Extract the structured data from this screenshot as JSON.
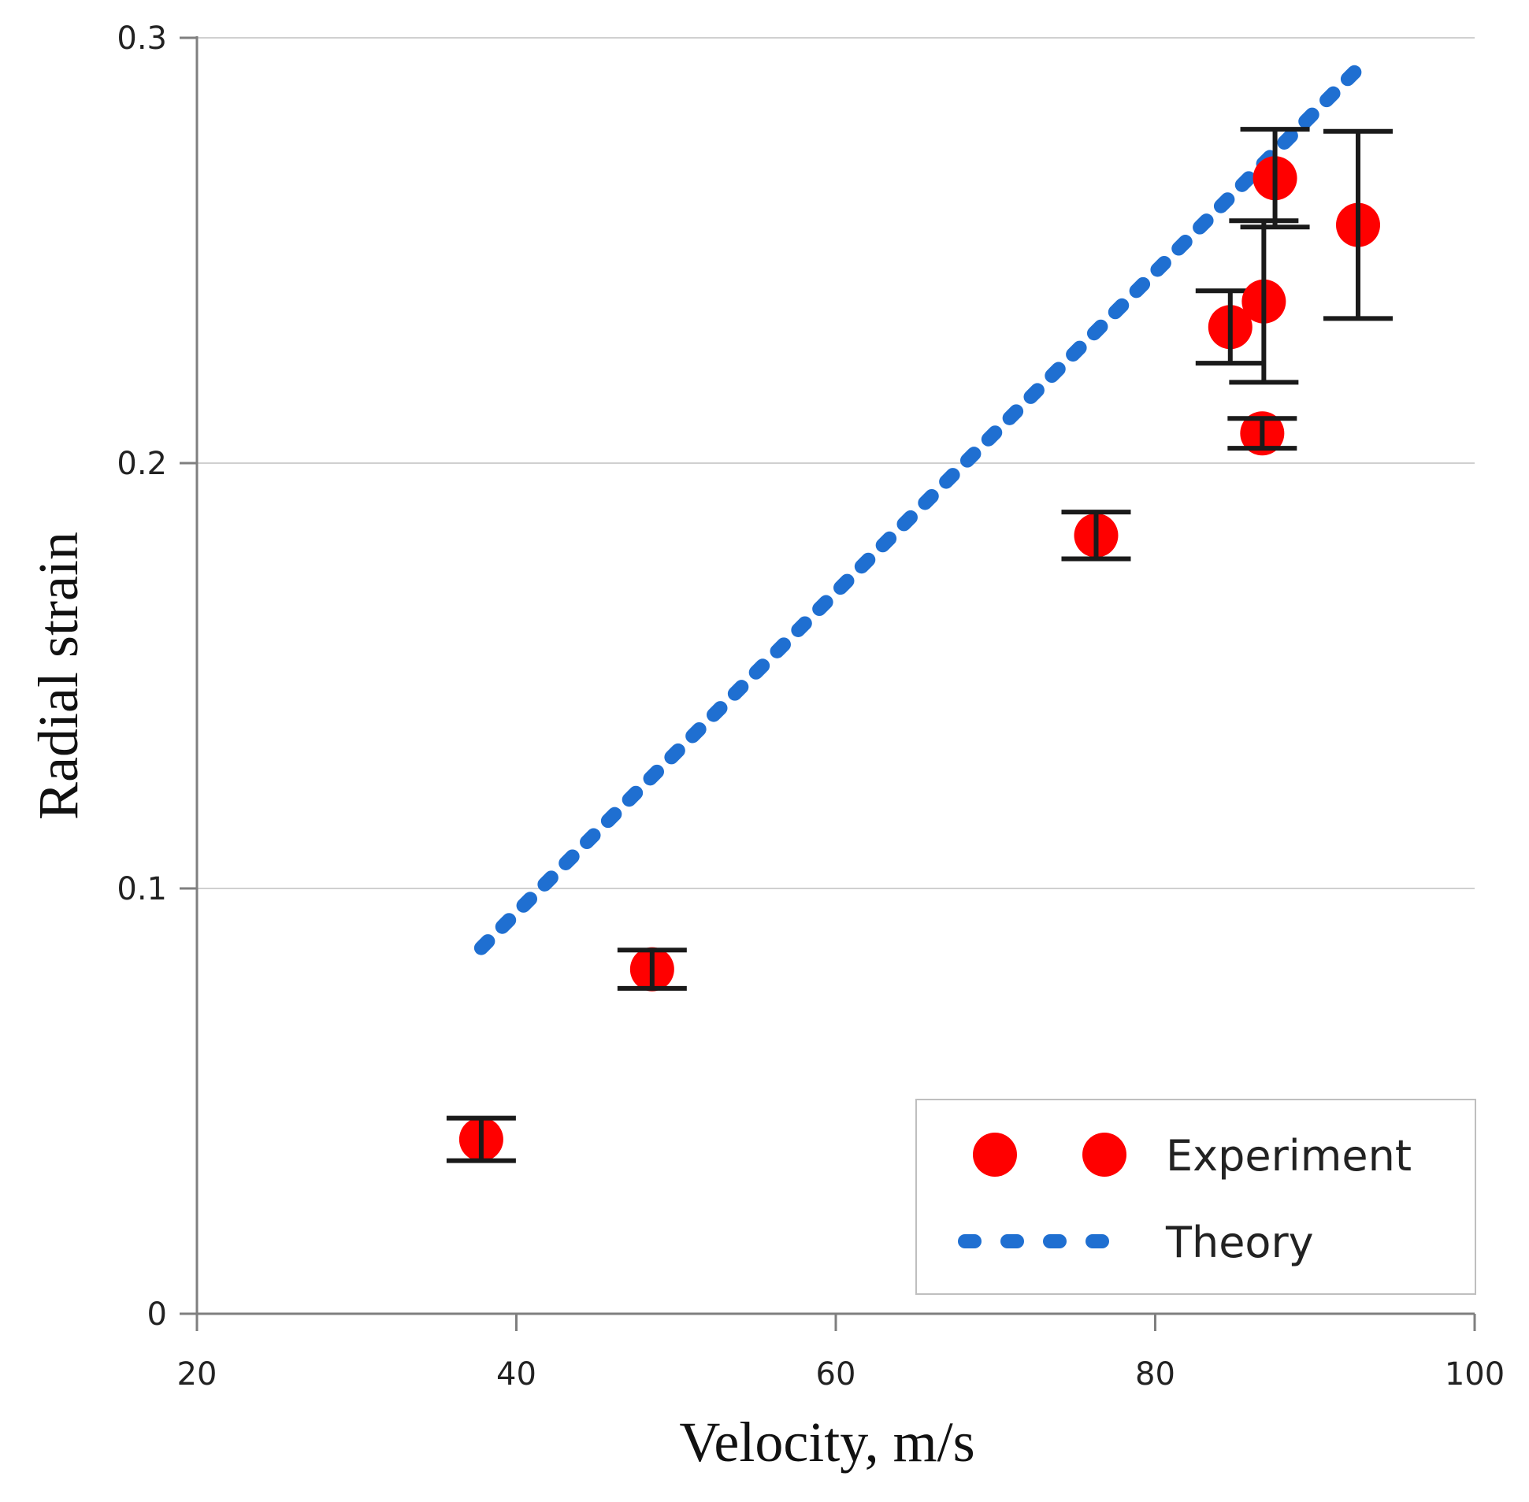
{
  "chart_data": {
    "type": "scatter",
    "title": "",
    "xlabel": "Velocity, m/s",
    "ylabel": "Radial strain",
    "xlim": [
      20,
      100
    ],
    "ylim": [
      0,
      0.3
    ],
    "x_ticks": [
      20,
      40,
      60,
      80,
      100
    ],
    "x_tick_labels": [
      "20",
      "40",
      "60",
      "80",
      "100"
    ],
    "y_ticks": [
      0,
      0.1,
      0.2,
      0.3
    ],
    "y_tick_labels": [
      "0",
      "0.1",
      "0.2",
      "0.3"
    ],
    "grid": "horizontal",
    "legend_position": "bottom-right",
    "series": [
      {
        "name": "Experiment",
        "kind": "points-with-error-bars",
        "color": "#ff0000",
        "points": [
          {
            "x": 37.8,
            "y": 0.041,
            "err": 0.005
          },
          {
            "x": 48.5,
            "y": 0.081,
            "err": 0.0045
          },
          {
            "x": 76.3,
            "y": 0.183,
            "err": 0.0055
          },
          {
            "x": 84.7,
            "y": 0.232,
            "err": 0.0085
          },
          {
            "x": 86.7,
            "y": 0.207,
            "err": 0.0035
          },
          {
            "x": 86.8,
            "y": 0.238,
            "err": 0.019
          },
          {
            "x": 87.5,
            "y": 0.267,
            "err": 0.0115
          },
          {
            "x": 92.7,
            "y": 0.256,
            "err": 0.022
          }
        ]
      },
      {
        "name": "Theory",
        "kind": "dotted-line",
        "color": "#1f6fd1",
        "x": [
          37.8,
          92.5
        ],
        "y": [
          0.086,
          0.292
        ]
      }
    ]
  }
}
